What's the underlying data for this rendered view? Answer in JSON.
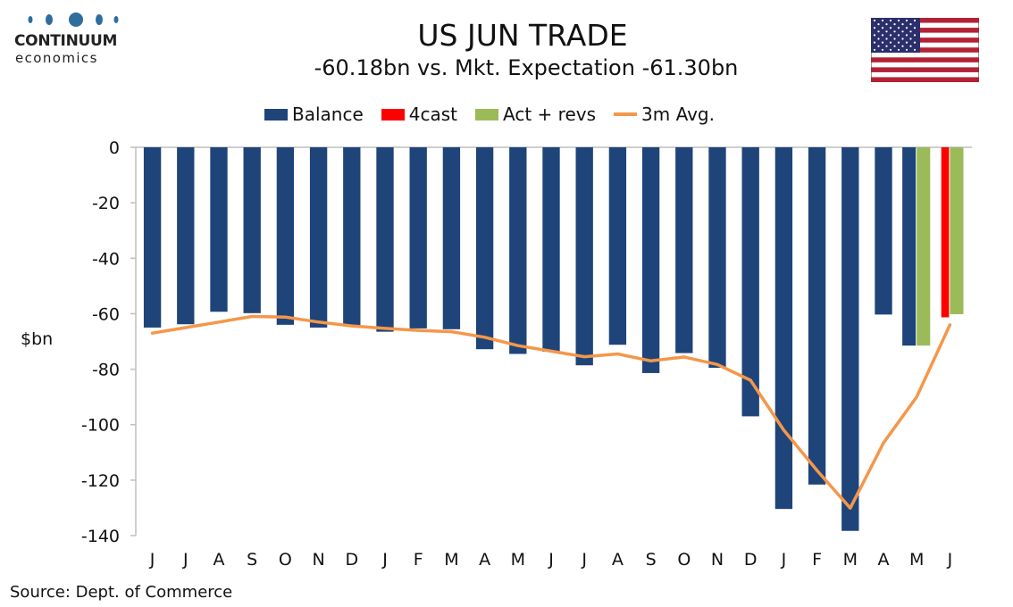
{
  "logo": {
    "name": "CONTINUUM",
    "sub": "economics"
  },
  "title": "US JUN TRADE",
  "subtitle": "-60.18bn vs. Mkt. Expectation -61.30bn",
  "flag_icon": "us-flag-icon",
  "colors": {
    "balance": "#1f4479",
    "forecast": "#ff0000",
    "actual_revs": "#9bbb59",
    "avg": "#f4974a",
    "axis": "#bfbfbf",
    "logo": "#2e6e9e"
  },
  "source": "Source: Dept. of Commerce",
  "chart_data": {
    "type": "bar",
    "title": "US JUN TRADE",
    "subtitle": "-60.18bn vs. Mkt. Expectation -61.30bn",
    "ylabel": "$bn",
    "xlabel": "",
    "ylim": [
      -140,
      0
    ],
    "yticks": [
      0,
      -20,
      -40,
      -60,
      -80,
      -100,
      -120,
      -140
    ],
    "legend_position": "top",
    "grid": false,
    "categories": [
      "J",
      "J",
      "A",
      "S",
      "O",
      "N",
      "D",
      "J",
      "F",
      "M",
      "A",
      "M",
      "J",
      "J",
      "A",
      "S",
      "O",
      "N",
      "D",
      "J",
      "F",
      "M",
      "A",
      "M",
      "J"
    ],
    "series": [
      {
        "name": "Balance",
        "type": "bar",
        "color": "#1f4479",
        "values": [
          -65.0,
          -63.8,
          -59.3,
          -59.8,
          -64.0,
          -65.0,
          -64.5,
          -66.5,
          -65.3,
          -65.6,
          -72.8,
          -74.5,
          -73.7,
          -78.6,
          -71.2,
          -81.4,
          -74.2,
          -79.5,
          -97.0,
          -130.4,
          -121.6,
          -138.3,
          -60.3,
          -71.5,
          null
        ]
      },
      {
        "name": "4cast",
        "type": "bar",
        "color": "#ff0000",
        "values": [
          null,
          null,
          null,
          null,
          null,
          null,
          null,
          null,
          null,
          null,
          null,
          null,
          null,
          null,
          null,
          null,
          null,
          null,
          null,
          null,
          null,
          null,
          null,
          null,
          -61.3
        ]
      },
      {
        "name": "Act + revs",
        "type": "bar",
        "color": "#9bbb59",
        "values": [
          null,
          null,
          null,
          null,
          null,
          null,
          null,
          null,
          null,
          null,
          null,
          null,
          null,
          null,
          null,
          null,
          null,
          null,
          null,
          null,
          null,
          null,
          null,
          -71.5,
          -60.18
        ]
      },
      {
        "name": "3m Avg.",
        "type": "line",
        "color": "#f4974a",
        "values": [
          -67.0,
          -65.0,
          -63.0,
          -61.0,
          -61.2,
          -63.0,
          -64.4,
          -65.3,
          -66.0,
          -66.5,
          -68.5,
          -71.5,
          -73.5,
          -75.5,
          -74.5,
          -77.0,
          -75.6,
          -78.3,
          -84.0,
          -102.0,
          -116.5,
          -130.1,
          -106.6,
          -90.0,
          -64.0
        ]
      }
    ]
  }
}
